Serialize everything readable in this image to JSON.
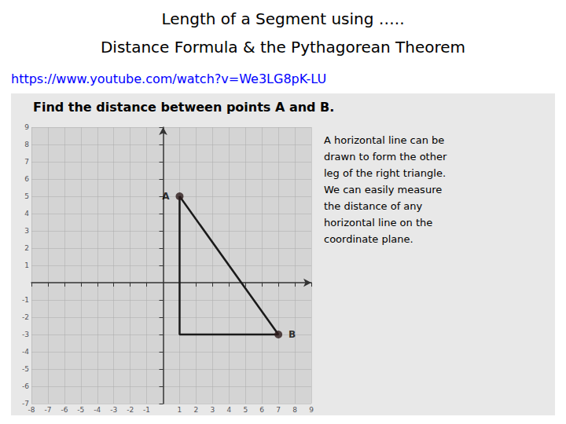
{
  "chart_data": {
    "type": "line",
    "title": "Length of a Segment using …..",
    "subtitle": "Distance Formula & the Pythagorean Theorem",
    "url": "https://www.youtube.com/watch?v=We3LG8pK-LU",
    "annotations": [
      "Find the distance between points A and B.",
      "A horizontal line can be\ndrawn to form the other\nleg of the right triangle.\nWe can easily measure\nthe distance of any\nhorizontal line on the\ncoordinate plane."
    ],
    "xlim": [
      -8,
      9
    ],
    "ylim": [
      -7,
      9
    ],
    "xticks": [
      -8,
      -7,
      -6,
      -5,
      -4,
      -3,
      -2,
      -1,
      1,
      2,
      3,
      4,
      5,
      6,
      7,
      8,
      9
    ],
    "yticks": [
      -7,
      -6,
      -5,
      -4,
      -3,
      -2,
      -1,
      1,
      2,
      3,
      4,
      5,
      6,
      7,
      8,
      9
    ],
    "grid": true,
    "series": [
      {
        "type": "line",
        "color": "#1a1a1a",
        "x": [
          1,
          1,
          7,
          1
        ],
        "values": [
          5,
          -3,
          -3,
          5
        ]
      },
      {
        "type": "scatter",
        "color": "#2d1b1b",
        "marker": "circle",
        "x": [
          1,
          7
        ],
        "values": [
          5,
          -3
        ],
        "labels": [
          "A",
          "B"
        ]
      }
    ]
  }
}
